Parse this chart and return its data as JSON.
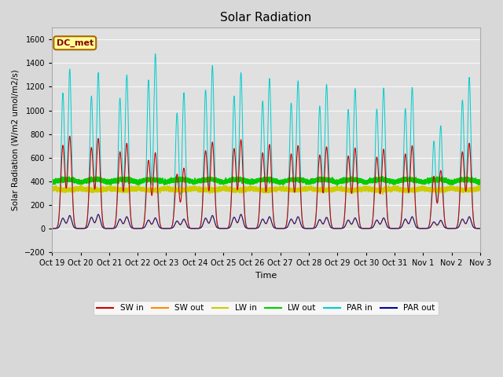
{
  "title": "Solar Radiation",
  "xlabel": "Time",
  "ylabel": "Solar Radiation (W/m2 umol/m2/s)",
  "ylim": [
    -200,
    1700
  ],
  "yticks": [
    -200,
    0,
    200,
    400,
    600,
    800,
    1000,
    1200,
    1400,
    1600
  ],
  "background_color": "#d8d8d8",
  "plot_bg_color": "#e0e0e0",
  "legend_label": "DC_met",
  "series_colors": {
    "SW in": "#cc0000",
    "SW out": "#ff8800",
    "LW in": "#cccc00",
    "LW out": "#00cc00",
    "PAR in": "#00cccc",
    "PAR out": "#000099"
  },
  "n_days": 15,
  "tick_labels": [
    "Oct 19",
    "Oct 20",
    "Oct 21",
    "Oct 22",
    "Oct 23",
    "Oct 24",
    "Oct 25",
    "Oct 26",
    "Oct 27",
    "Oct 28",
    "Oct 29",
    "Oct 30",
    "Oct 31",
    "Nov 1",
    "Nov 2",
    "Nov 3"
  ],
  "lw_in_base": 340.0,
  "lw_out_base": 390.0,
  "sw_in_peaks": [
    780,
    760,
    720,
    640,
    510,
    730,
    750,
    710,
    700,
    690,
    680,
    670,
    700,
    490,
    720
  ],
  "sw_out_peaks": [
    100,
    110,
    90,
    80,
    70,
    100,
    110,
    90,
    90,
    85,
    80,
    80,
    90,
    60,
    90
  ],
  "par_in_peaks": [
    1350,
    1320,
    1300,
    1480,
    1150,
    1380,
    1320,
    1270,
    1250,
    1220,
    1185,
    1190,
    1195,
    870,
    1280
  ],
  "par_out_peaks": [
    110,
    120,
    100,
    90,
    80,
    110,
    120,
    100,
    100,
    95,
    90,
    90,
    100,
    70,
    100
  ]
}
